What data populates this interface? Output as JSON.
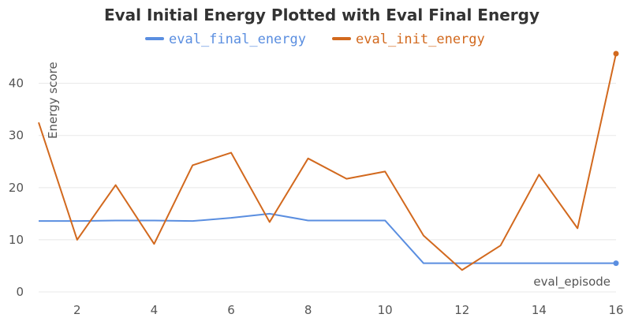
{
  "chart_data": {
    "type": "line",
    "title": "Eval Initial Energy Plotted with Eval Final Energy",
    "xlabel": "eval_episode",
    "ylabel": "Energy score",
    "xlim": [
      1,
      16
    ],
    "ylim": [
      0,
      46
    ],
    "x_ticks": [
      2,
      4,
      6,
      8,
      10,
      12,
      14,
      16
    ],
    "y_ticks": [
      0,
      10,
      20,
      30,
      40
    ],
    "grid": true,
    "legend_position": "top-center",
    "x": [
      1,
      2,
      3,
      4,
      5,
      6,
      7,
      8,
      9,
      10,
      11,
      12,
      13,
      14,
      15,
      16
    ],
    "series": [
      {
        "name": "eval_final_energy",
        "color": "#5a8ee0",
        "values": [
          13.6,
          13.6,
          13.7,
          13.7,
          13.6,
          14.2,
          15.0,
          13.7,
          13.7,
          13.7,
          5.5,
          5.5,
          5.5,
          5.5,
          5.5,
          5.5
        ]
      },
      {
        "name": "eval_init_energy",
        "color": "#d2691e",
        "values": [
          32.5,
          10.0,
          20.5,
          9.2,
          24.3,
          26.7,
          13.4,
          25.6,
          21.7,
          23.1,
          10.8,
          4.2,
          8.9,
          22.5,
          12.2,
          45.7
        ]
      }
    ]
  }
}
